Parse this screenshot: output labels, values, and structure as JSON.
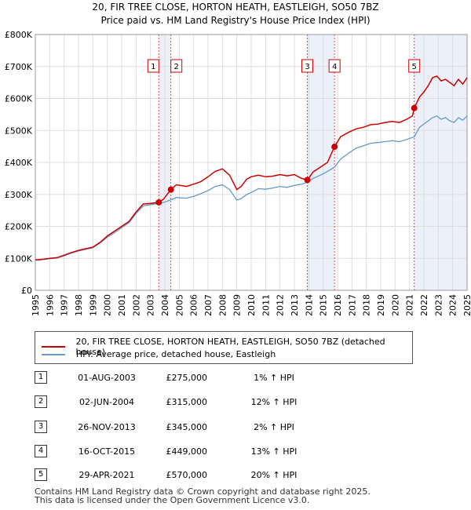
{
  "chart_data": {
    "type": "line",
    "title": "20, FIR TREE CLOSE, HORTON HEATH, EASTLEIGH, SO50 7BZ",
    "subtitle": "Price paid vs. HM Land Registry's House Price Index (HPI)",
    "xlabel": "",
    "ylabel": "",
    "xlim": [
      1995,
      2025
    ],
    "ylim": [
      0,
      800000
    ],
    "y_ticks": [
      0,
      100000,
      200000,
      300000,
      400000,
      500000,
      600000,
      700000,
      800000
    ],
    "y_tick_labels": [
      "£0",
      "£100K",
      "£200K",
      "£300K",
      "£400K",
      "£500K",
      "£600K",
      "£700K",
      "£800K"
    ],
    "x_ticks": [
      1995,
      1996,
      1997,
      1998,
      1999,
      2000,
      2001,
      2002,
      2003,
      2004,
      2005,
      2006,
      2007,
      2008,
      2009,
      2010,
      2011,
      2012,
      2013,
      2014,
      2015,
      2016,
      2017,
      2018,
      2019,
      2020,
      2021,
      2022,
      2023,
      2024,
      2025
    ],
    "x_tick_labels": [
      "1995",
      "1996",
      "1997",
      "1998",
      "1999",
      "2000",
      "2001",
      "2002",
      "2003",
      "2004",
      "2005",
      "2006",
      "2007",
      "2008",
      "2009",
      "2010",
      "2011",
      "2012",
      "2013",
      "2014",
      "2015",
      "2016",
      "2017",
      "2018",
      "2019",
      "2020",
      "2021",
      "2022",
      "2023",
      "2024",
      "2025"
    ],
    "grid": true,
    "series": [
      {
        "name": "20, FIR TREE CLOSE, HORTON HEATH, EASTLEIGH, SO50 7BZ (detached house)",
        "color": "#cc0000",
        "x": [
          1995.0,
          1995.5,
          1996.0,
          1996.5,
          1997.0,
          1997.5,
          1998.0,
          1998.5,
          1999.0,
          1999.5,
          2000.0,
          2000.5,
          2001.0,
          2001.5,
          2002.0,
          2002.5,
          2003.0,
          2003.58,
          2003.9,
          2004.42,
          2004.8,
          2005.5,
          2006.0,
          2006.5,
          2007.0,
          2007.5,
          2008.0,
          2008.5,
          2009.0,
          2009.3,
          2009.7,
          2010.0,
          2010.5,
          2011.0,
          2011.5,
          2012.0,
          2012.5,
          2013.0,
          2013.5,
          2013.9,
          2014.3,
          2014.8,
          2015.3,
          2015.79,
          2016.2,
          2016.8,
          2017.3,
          2017.8,
          2018.3,
          2018.8,
          2019.3,
          2019.8,
          2020.3,
          2020.8,
          2021.2,
          2021.33,
          2021.7,
          2022.0,
          2022.3,
          2022.6,
          2022.9,
          2023.2,
          2023.5,
          2023.8,
          2024.1,
          2024.4,
          2024.7,
          2025.0
        ],
        "y": [
          95000,
          97000,
          100000,
          102000,
          110000,
          118000,
          125000,
          130000,
          135000,
          150000,
          170000,
          185000,
          200000,
          215000,
          245000,
          270000,
          272000,
          275000,
          285000,
          315000,
          330000,
          325000,
          332000,
          340000,
          355000,
          372000,
          380000,
          360000,
          315000,
          325000,
          348000,
          355000,
          360000,
          355000,
          357000,
          362000,
          358000,
          362000,
          350000,
          345000,
          370000,
          385000,
          400000,
          449000,
          480000,
          495000,
          505000,
          510000,
          518000,
          520000,
          525000,
          528000,
          525000,
          535000,
          545000,
          570000,
          605000,
          620000,
          640000,
          665000,
          670000,
          655000,
          660000,
          650000,
          640000,
          660000,
          645000,
          665000
        ]
      },
      {
        "name": "HPI: Average price, detached house, Eastleigh",
        "color": "#6699cc",
        "x": [
          1995.0,
          1995.5,
          1996.0,
          1996.5,
          1997.0,
          1997.5,
          1998.0,
          1998.5,
          1999.0,
          1999.5,
          2000.0,
          2000.5,
          2001.0,
          2001.5,
          2002.0,
          2002.5,
          2003.0,
          2003.58,
          2004.0,
          2004.42,
          2004.8,
          2005.5,
          2006.0,
          2006.5,
          2007.0,
          2007.5,
          2008.0,
          2008.5,
          2009.0,
          2009.3,
          2009.7,
          2010.0,
          2010.5,
          2011.0,
          2011.5,
          2012.0,
          2012.5,
          2013.0,
          2013.5,
          2013.9,
          2014.3,
          2014.8,
          2015.3,
          2015.79,
          2016.2,
          2016.8,
          2017.3,
          2017.8,
          2018.3,
          2018.8,
          2019.3,
          2019.8,
          2020.3,
          2020.8,
          2021.2,
          2021.33,
          2021.7,
          2022.0,
          2022.3,
          2022.6,
          2022.9,
          2023.2,
          2023.5,
          2023.8,
          2024.1,
          2024.4,
          2024.7,
          2025.0
        ],
        "y": [
          94000,
          96000,
          99000,
          101000,
          108000,
          116000,
          123000,
          128000,
          133000,
          148000,
          166000,
          180000,
          196000,
          211000,
          240000,
          264000,
          268000,
          272000,
          276000,
          283000,
          290000,
          288000,
          294000,
          302000,
          312000,
          325000,
          330000,
          315000,
          282000,
          287000,
          300000,
          306000,
          318000,
          316000,
          320000,
          325000,
          322000,
          328000,
          332000,
          338000,
          350000,
          360000,
          372000,
          385000,
          410000,
          430000,
          445000,
          452000,
          460000,
          462000,
          465000,
          468000,
          465000,
          472000,
          478000,
          480000,
          510000,
          520000,
          530000,
          540000,
          545000,
          535000,
          540000,
          530000,
          525000,
          540000,
          532000,
          545000
        ]
      }
    ],
    "sales": [
      {
        "label": "1",
        "x": 2003.58,
        "y": 275000
      },
      {
        "label": "2",
        "x": 2004.42,
        "y": 315000
      },
      {
        "label": "3",
        "x": 2013.9,
        "y": 345000
      },
      {
        "label": "4",
        "x": 2015.79,
        "y": 449000
      },
      {
        "label": "5",
        "x": 2021.33,
        "y": 570000
      }
    ],
    "shaded_periods": [
      [
        2003.58,
        2004.42
      ],
      [
        2013.9,
        2015.79
      ],
      [
        2021.33,
        2025
      ]
    ],
    "marker_color": "#cc0000",
    "shade_color": "#dde6f5"
  },
  "legend": [
    {
      "label": "20, FIR TREE CLOSE, HORTON HEATH, EASTLEIGH, SO50 7BZ (detached house)",
      "color": "#cc0000"
    },
    {
      "label": "HPI: Average price, detached house, Eastleigh",
      "color": "#6699cc"
    }
  ],
  "transactions": [
    {
      "num": "1",
      "date": "01-AUG-2003",
      "price": "£275,000",
      "hpi": "1% ↑ HPI"
    },
    {
      "num": "2",
      "date": "02-JUN-2004",
      "price": "£315,000",
      "hpi": "12% ↑ HPI"
    },
    {
      "num": "3",
      "date": "26-NOV-2013",
      "price": "£345,000",
      "hpi": "2% ↑ HPI"
    },
    {
      "num": "4",
      "date": "16-OCT-2015",
      "price": "£449,000",
      "hpi": "13% ↑ HPI"
    },
    {
      "num": "5",
      "date": "29-APR-2021",
      "price": "£570,000",
      "hpi": "20% ↑ HPI"
    }
  ],
  "footer": {
    "line1": "Contains HM Land Registry data © Crown copyright and database right 2025.",
    "line2": "This data is licensed under the Open Government Licence v3.0."
  }
}
